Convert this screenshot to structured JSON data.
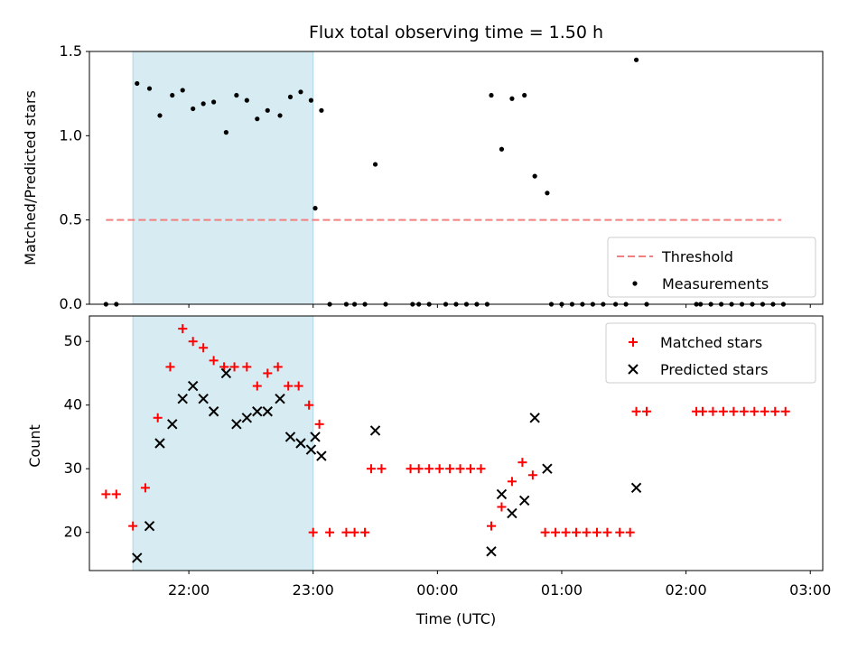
{
  "chart_data": [
    {
      "type": "scatter",
      "title": "Flux total observing time = 1.50 h",
      "xlabel": "",
      "ylabel": "Matched/Predicted stars",
      "xlim": [
        "21:12",
        "03:06"
      ],
      "ylim": [
        0,
        1.5
      ],
      "yticks": [
        0.0,
        0.5,
        1.0,
        1.5
      ],
      "ytick_labels": [
        "0.0",
        "0.5",
        "1.0",
        "1.5"
      ],
      "shaded_span": {
        "start": "21:33",
        "end": "23:00",
        "color": "#add8e6"
      },
      "threshold": {
        "name": "Threshold",
        "y": 0.5,
        "x_start": "21:20",
        "x_end": "02:46",
        "color": "#f08080"
      },
      "legend": {
        "position": "lower-right",
        "entries": [
          "Threshold",
          "Measurements"
        ]
      },
      "series": [
        {
          "name": "Measurements",
          "marker": "dot",
          "color": "#000000",
          "points": [
            [
              "21:20",
              0.0
            ],
            [
              "21:25",
              0.0
            ],
            [
              "21:35",
              1.31
            ],
            [
              "21:41",
              1.28
            ],
            [
              "21:46",
              1.12
            ],
            [
              "21:52",
              1.24
            ],
            [
              "21:57",
              1.27
            ],
            [
              "22:02",
              1.16
            ],
            [
              "22:07",
              1.19
            ],
            [
              "22:12",
              1.2
            ],
            [
              "22:18",
              1.02
            ],
            [
              "22:23",
              1.24
            ],
            [
              "22:28",
              1.21
            ],
            [
              "22:33",
              1.1
            ],
            [
              "22:38",
              1.15
            ],
            [
              "22:44",
              1.12
            ],
            [
              "22:49",
              1.23
            ],
            [
              "22:54",
              1.26
            ],
            [
              "22:59",
              1.21
            ],
            [
              "23:04",
              1.15
            ],
            [
              "23:01",
              0.57
            ],
            [
              "23:08",
              0.0
            ],
            [
              "23:16",
              0.0
            ],
            [
              "23:20",
              0.0
            ],
            [
              "23:25",
              0.0
            ],
            [
              "23:30",
              0.83
            ],
            [
              "23:35",
              0.0
            ],
            [
              "23:48",
              0.0
            ],
            [
              "23:51",
              0.0
            ],
            [
              "23:56",
              0.0
            ],
            [
              "00:04",
              0.0
            ],
            [
              "00:09",
              0.0
            ],
            [
              "00:14",
              0.0
            ],
            [
              "00:19",
              0.0
            ],
            [
              "00:24",
              0.0
            ],
            [
              "00:26",
              1.24
            ],
            [
              "00:31",
              0.92
            ],
            [
              "00:36",
              1.22
            ],
            [
              "00:42",
              1.24
            ],
            [
              "00:47",
              0.76
            ],
            [
              "00:53",
              0.66
            ],
            [
              "00:55",
              0.0
            ],
            [
              "01:00",
              0.0
            ],
            [
              "01:05",
              0.0
            ],
            [
              "01:10",
              0.0
            ],
            [
              "01:15",
              0.0
            ],
            [
              "01:20",
              0.0
            ],
            [
              "01:26",
              0.0
            ],
            [
              "01:31",
              0.0
            ],
            [
              "01:36",
              1.45
            ],
            [
              "01:41",
              0.0
            ],
            [
              "02:05",
              0.0
            ],
            [
              "02:07",
              0.0
            ],
            [
              "02:12",
              0.0
            ],
            [
              "02:17",
              0.0
            ],
            [
              "02:22",
              0.0
            ],
            [
              "02:27",
              0.0
            ],
            [
              "02:32",
              0.0
            ],
            [
              "02:37",
              0.0
            ],
            [
              "02:42",
              0.0
            ],
            [
              "02:47",
              0.0
            ]
          ]
        }
      ]
    },
    {
      "type": "scatter",
      "title": "",
      "xlabel": "Time (UTC)",
      "ylabel": "Count",
      "xlim": [
        "21:12",
        "03:06"
      ],
      "ylim": [
        14,
        54
      ],
      "yticks": [
        20,
        30,
        40,
        50
      ],
      "ytick_labels": [
        "20",
        "30",
        "40",
        "50"
      ],
      "xticks": [
        "22:00",
        "23:00",
        "00:00",
        "01:00",
        "02:00",
        "03:00"
      ],
      "shaded_span": {
        "start": "21:33",
        "end": "23:00",
        "color": "#add8e6"
      },
      "legend": {
        "position": "upper-right",
        "entries": [
          "Matched stars",
          "Predicted stars"
        ]
      },
      "series": [
        {
          "name": "Matched stars",
          "marker": "plus",
          "color": "#ff0000",
          "points": [
            [
              "21:20",
              26
            ],
            [
              "21:25",
              26
            ],
            [
              "21:33",
              21
            ],
            [
              "21:39",
              27
            ],
            [
              "21:45",
              38
            ],
            [
              "21:51",
              46
            ],
            [
              "21:57",
              52
            ],
            [
              "22:02",
              50
            ],
            [
              "22:07",
              49
            ],
            [
              "22:12",
              47
            ],
            [
              "22:17",
              46
            ],
            [
              "22:22",
              46
            ],
            [
              "22:28",
              46
            ],
            [
              "22:33",
              43
            ],
            [
              "22:38",
              45
            ],
            [
              "22:43",
              46
            ],
            [
              "22:48",
              43
            ],
            [
              "22:53",
              43
            ],
            [
              "22:58",
              40
            ],
            [
              "23:03",
              37
            ],
            [
              "23:00",
              20
            ],
            [
              "23:08",
              20
            ],
            [
              "23:16",
              20
            ],
            [
              "23:20",
              20
            ],
            [
              "23:25",
              20
            ],
            [
              "23:28",
              30
            ],
            [
              "23:33",
              30
            ],
            [
              "23:47",
              30
            ],
            [
              "23:51",
              30
            ],
            [
              "23:56",
              30
            ],
            [
              "00:01",
              30
            ],
            [
              "00:06",
              30
            ],
            [
              "00:11",
              30
            ],
            [
              "00:16",
              30
            ],
            [
              "00:21",
              30
            ],
            [
              "00:26",
              21
            ],
            [
              "00:31",
              24
            ],
            [
              "00:36",
              28
            ],
            [
              "00:41",
              31
            ],
            [
              "00:46",
              29
            ],
            [
              "00:52",
              20
            ],
            [
              "00:57",
              20
            ],
            [
              "01:02",
              20
            ],
            [
              "01:07",
              20
            ],
            [
              "01:12",
              20
            ],
            [
              "01:17",
              20
            ],
            [
              "01:22",
              20
            ],
            [
              "01:28",
              20
            ],
            [
              "01:33",
              20
            ],
            [
              "01:36",
              39
            ],
            [
              "01:41",
              39
            ],
            [
              "02:05",
              39
            ],
            [
              "02:08",
              39
            ],
            [
              "02:13",
              39
            ],
            [
              "02:18",
              39
            ],
            [
              "02:23",
              39
            ],
            [
              "02:28",
              39
            ],
            [
              "02:33",
              39
            ],
            [
              "02:38",
              39
            ],
            [
              "02:43",
              39
            ],
            [
              "02:48",
              39
            ]
          ]
        },
        {
          "name": "Predicted stars",
          "marker": "x",
          "color": "#000000",
          "points": [
            [
              "21:35",
              16
            ],
            [
              "21:41",
              21
            ],
            [
              "21:46",
              34
            ],
            [
              "21:52",
              37
            ],
            [
              "21:57",
              41
            ],
            [
              "22:02",
              43
            ],
            [
              "22:07",
              41
            ],
            [
              "22:12",
              39
            ],
            [
              "22:18",
              45
            ],
            [
              "22:23",
              37
            ],
            [
              "22:28",
              38
            ],
            [
              "22:33",
              39
            ],
            [
              "22:38",
              39
            ],
            [
              "22:44",
              41
            ],
            [
              "22:49",
              35
            ],
            [
              "22:54",
              34
            ],
            [
              "22:59",
              33
            ],
            [
              "23:04",
              32
            ],
            [
              "23:01",
              35
            ],
            [
              "23:30",
              36
            ],
            [
              "00:26",
              17
            ],
            [
              "00:31",
              26
            ],
            [
              "00:36",
              23
            ],
            [
              "00:42",
              25
            ],
            [
              "00:47",
              38
            ],
            [
              "00:53",
              30
            ],
            [
              "01:36",
              27
            ]
          ]
        }
      ]
    }
  ]
}
